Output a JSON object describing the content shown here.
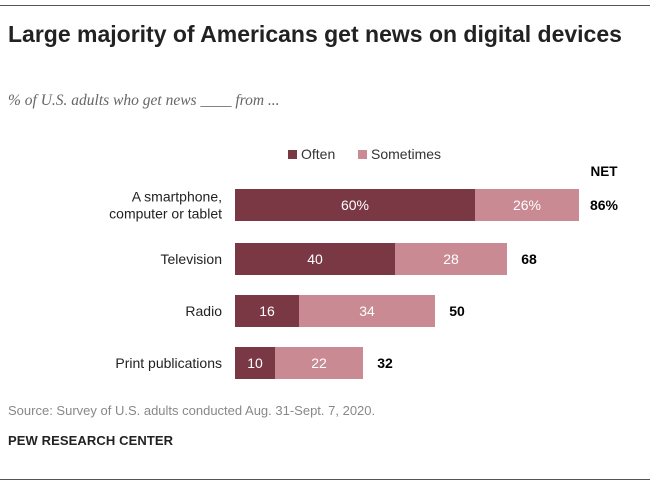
{
  "title": "Large majority of Americans get news on digital devices",
  "subtitle": "% of U.S. adults who get news ____ from ...",
  "source": "Source: Survey of U.S. adults conducted Aug. 31-Sept. 7, 2020.",
  "org": "PEW RESEARCH CENTER",
  "colors": {
    "often": "#7a3844",
    "sometimes": "#c98a93",
    "net_text": "#000000"
  },
  "chart_data": {
    "type": "bar",
    "orientation": "horizontal",
    "stacked": true,
    "categories": [
      [
        "A smartphone,",
        "computer or tablet"
      ],
      [
        "Television"
      ],
      [
        "Radio"
      ],
      [
        "Print publications"
      ]
    ],
    "series": [
      {
        "name": "Often",
        "values": [
          60,
          40,
          16,
          10
        ],
        "labels": [
          "60%",
          "40",
          "16",
          "10"
        ]
      },
      {
        "name": "Sometimes",
        "values": [
          26,
          28,
          34,
          22
        ],
        "labels": [
          "26%",
          "28",
          "34",
          "22"
        ]
      }
    ],
    "net_header": "NET",
    "net": [
      86,
      68,
      50,
      32
    ],
    "net_labels": [
      "86%",
      "68",
      "50",
      "32"
    ],
    "legend_position": "top",
    "grid": false
  }
}
